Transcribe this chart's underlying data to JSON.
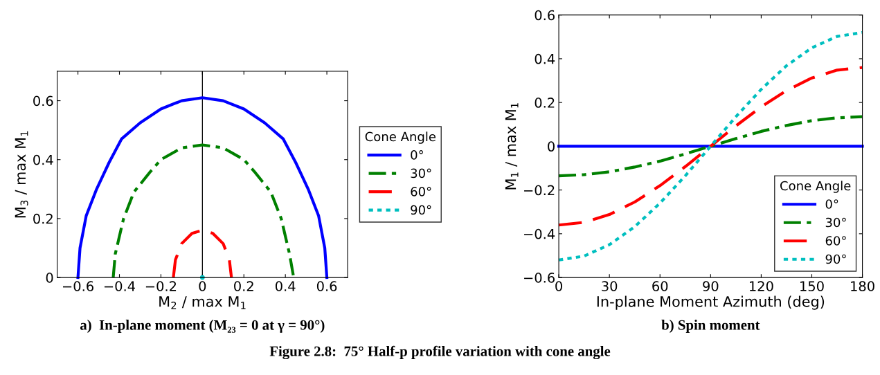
{
  "chart_data": [
    {
      "type": "line",
      "xlabel": "M$_{2}$ / max M$_{1}$",
      "ylabel": "M$_{3}$ / max M$_{1}$",
      "legend_title": "Cone Angle",
      "legend": "right",
      "grid": false,
      "xlim": [
        -0.7,
        0.7
      ],
      "xticks": [
        {
          "value": -0.6,
          "label": "−0.6"
        },
        {
          "value": -0.4,
          "label": "−0.4"
        },
        {
          "value": -0.2,
          "label": "−0.2"
        },
        0,
        0.2,
        0.4,
        0.6
      ],
      "ylim": [
        0,
        0.7
      ],
      "yticks": [
        0,
        0.2,
        0.4,
        0.6
      ],
      "ref_lines": [
        {
          "axis": "x",
          "value": 0,
          "color": "#000000",
          "line_style": "solid"
        }
      ],
      "annotations": [
        {
          "text": "a)  In-plane moment (M₂₃ = 0 at γ = 90°)"
        }
      ],
      "series": [
        {
          "name": "0°",
          "color": "#0000ff",
          "line_style": "solid",
          "x": [
            -0.6,
            -0.59,
            -0.56,
            -0.51,
            -0.45,
            -0.39,
            -0.3,
            -0.2,
            -0.1,
            0,
            0.1,
            0.2,
            0.3,
            0.39,
            0.45,
            0.51,
            0.56,
            0.59,
            0.6
          ],
          "values": [
            0,
            0.1,
            0.21,
            0.3,
            0.39,
            0.47,
            0.525,
            0.572,
            0.6,
            0.61,
            0.6,
            0.572,
            0.525,
            0.47,
            0.39,
            0.3,
            0.21,
            0.1,
            0
          ]
        },
        {
          "name": "30°",
          "color": "#008000",
          "line_style": "dashdot",
          "x": [
            -0.43,
            -0.42,
            -0.38,
            -0.33,
            -0.25,
            -0.2,
            -0.1,
            0,
            0.1,
            0.2,
            0.25,
            0.33,
            0.38,
            0.42,
            0.44
          ],
          "values": [
            0,
            0.08,
            0.2,
            0.29,
            0.36,
            0.4,
            0.44,
            0.45,
            0.44,
            0.4,
            0.36,
            0.29,
            0.2,
            0.08,
            0
          ]
        },
        {
          "name": "60°",
          "color": "#ff0000",
          "line_style": "dashed",
          "x": [
            -0.14,
            -0.13,
            -0.1,
            -0.05,
            0,
            0.05,
            0.1,
            0.13,
            0.14
          ],
          "values": [
            0,
            0.06,
            0.115,
            0.15,
            0.16,
            0.15,
            0.115,
            0.06,
            0
          ]
        },
        {
          "name": "90°",
          "color": "#00bfbf",
          "line_style": "dotted",
          "marker": "circle",
          "x": [
            0
          ],
          "values": [
            0
          ]
        }
      ]
    },
    {
      "type": "line",
      "xlabel": "In-plane Moment Azimuth (deg)",
      "ylabel": "M$_{1}$ / max M$_{1}$",
      "legend_title": "Cone Angle",
      "legend": "lower right",
      "grid": false,
      "x": [
        0,
        15,
        30,
        45,
        60,
        75,
        90,
        105,
        120,
        135,
        150,
        165,
        180
      ],
      "xlim": [
        0,
        180
      ],
      "xticks": [
        0,
        30,
        60,
        90,
        120,
        150,
        180
      ],
      "ylim": [
        -0.6,
        0.6
      ],
      "yticks": [
        {
          "value": -0.6,
          "label": "−0.6"
        },
        {
          "value": -0.4,
          "label": "−0.4"
        },
        {
          "value": -0.2,
          "label": "−0.2"
        },
        0,
        0.2,
        0.4,
        0.6
      ],
      "annotations": [
        {
          "text": "b) Spin moment"
        },
        {
          "text": "Figure 2.8:  75° Half-p profile variation with cone angle"
        }
      ],
      "series": [
        {
          "name": "0°",
          "color": "#0000ff",
          "line_style": "solid",
          "values": [
            0,
            0,
            0,
            0,
            0,
            0,
            0,
            0,
            0,
            0,
            0,
            0,
            0
          ]
        },
        {
          "name": "30°",
          "color": "#008000",
          "line_style": "dashdot",
          "values": [
            -0.135,
            -0.13,
            -0.117,
            -0.095,
            -0.068,
            -0.035,
            0,
            0.035,
            0.068,
            0.095,
            0.117,
            0.13,
            0.135
          ]
        },
        {
          "name": "60°",
          "color": "#ff0000",
          "line_style": "dashed",
          "values": [
            -0.36,
            -0.348,
            -0.312,
            -0.255,
            -0.18,
            -0.093,
            0,
            0.093,
            0.18,
            0.255,
            0.312,
            0.348,
            0.36
          ]
        },
        {
          "name": "90°",
          "color": "#00bfbf",
          "line_style": "dotted",
          "values": [
            -0.52,
            -0.502,
            -0.45,
            -0.368,
            -0.26,
            -0.135,
            0,
            0.135,
            0.26,
            0.368,
            0.45,
            0.502,
            0.52
          ]
        }
      ]
    }
  ]
}
